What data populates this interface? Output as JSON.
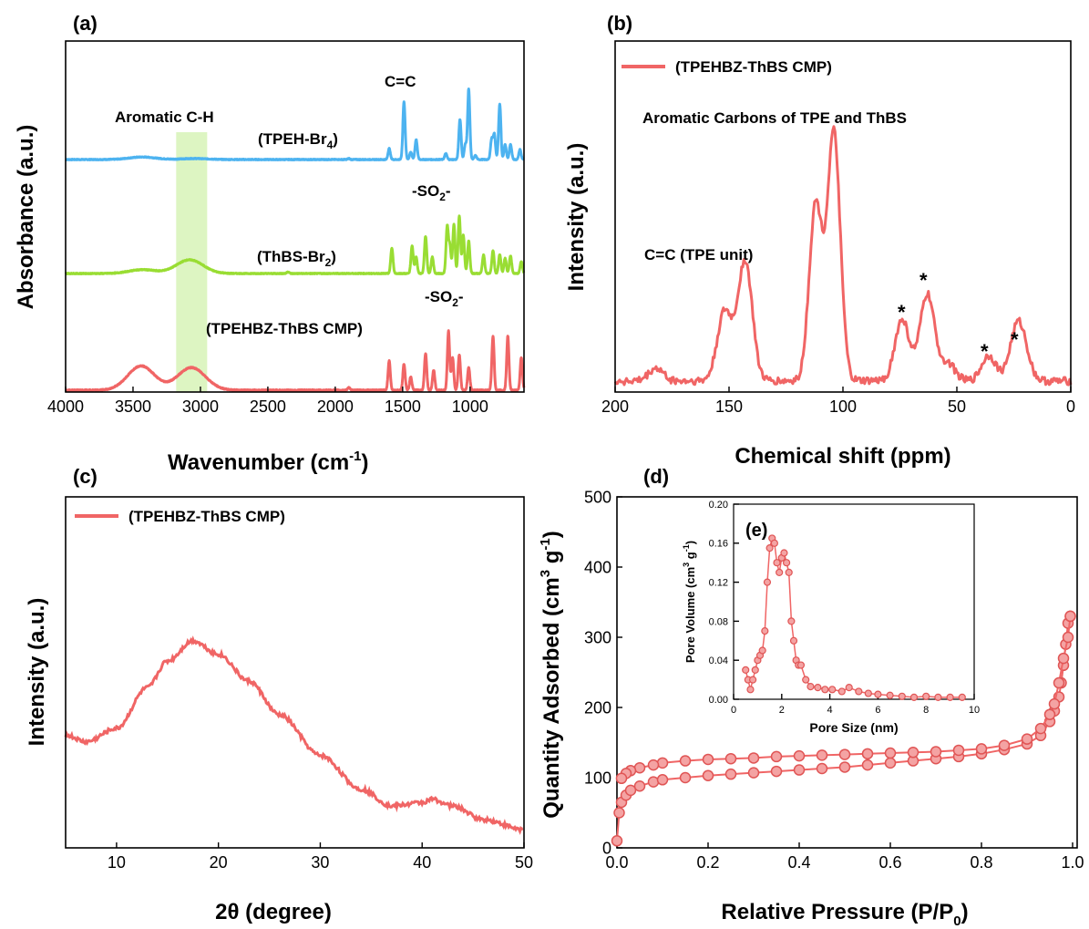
{
  "colors": {
    "red": "#F06565",
    "blue": "#4DB3F0",
    "green": "#99DD33",
    "band": "#DDF5C2"
  },
  "chart_data": [
    {
      "panel": "(a)",
      "type": "line",
      "xlabel": "Wavenumber (cm",
      "xlabel_sup": "-1",
      "xlabel_end": ")",
      "ylabel": "Absorbance (a.u.)",
      "xlim": [
        4000,
        600
      ],
      "xticks": [
        "4000",
        "3500",
        "3000",
        "2500",
        "2000",
        "1500",
        "1000"
      ],
      "y_ticks_shown": false,
      "highlight_band": {
        "label": "Aromatic C-H",
        "x_range": [
          3180,
          2950
        ]
      },
      "annotations": [
        {
          "text": "C=C"
        },
        {
          "text": "-SO",
          "sub": "2",
          "end": "-"
        },
        {
          "text": "-SO",
          "sub": "2",
          "end": "-"
        }
      ],
      "series": [
        {
          "name": "(TPEH-Br",
          "sub": "4",
          "end": ")",
          "color": "#4DB3F0",
          "offset": 2,
          "peaks": [
            [
              3430,
              0.5
            ],
            [
              3040,
              0.2
            ],
            [
              1900,
              0.2
            ],
            [
              1600,
              2.2
            ],
            [
              1490,
              11.5
            ],
            [
              1440,
              1.5
            ],
            [
              1400,
              4
            ],
            [
              1180,
              1.2
            ],
            [
              1075,
              8
            ],
            [
              1035,
              3
            ],
            [
              1010,
              14
            ],
            [
              960,
              0.8
            ],
            [
              840,
              4
            ],
            [
              820,
              5
            ],
            [
              780,
              11
            ],
            [
              740,
              3
            ],
            [
              700,
              3
            ],
            [
              630,
              2
            ]
          ]
        },
        {
          "name": "(ThBS-Br",
          "sub": "2",
          "end": ")",
          "color": "#99DD33",
          "offset": 1,
          "peaks": [
            [
              3430,
              0.7
            ],
            [
              3080,
              2.5
            ],
            [
              2350,
              0.3
            ],
            [
              1580,
              4.6
            ],
            [
              1430,
              5
            ],
            [
              1400,
              3
            ],
            [
              1330,
              6.8
            ],
            [
              1280,
              3
            ],
            [
              1170,
              8.5
            ],
            [
              1150,
              5
            ],
            [
              1120,
              9
            ],
            [
              1080,
              10.5
            ],
            [
              1050,
              7
            ],
            [
              1010,
              6
            ],
            [
              900,
              3.4
            ],
            [
              830,
              4.2
            ],
            [
              780,
              3.5
            ],
            [
              740,
              2.8
            ],
            [
              700,
              3.2
            ],
            [
              620,
              2.2
            ]
          ]
        },
        {
          "name": "(TPEHBZ-ThBS CMP)",
          "color": "#F06565",
          "offset": 0,
          "peaks": [
            [
              3440,
              3.7
            ],
            [
              3100,
              1.6
            ],
            [
              3040,
              2
            ],
            [
              1900,
              0.4
            ],
            [
              1600,
              4.5
            ],
            [
              1490,
              4
            ],
            [
              1440,
              2
            ],
            [
              1330,
              5.6
            ],
            [
              1270,
              3
            ],
            [
              1160,
              9
            ],
            [
              1130,
              5
            ],
            [
              1080,
              5.4
            ],
            [
              1010,
              3.5
            ],
            [
              830,
              8.2
            ],
            [
              720,
              8.3
            ],
            [
              620,
              5
            ]
          ]
        }
      ]
    },
    {
      "panel": "(b)",
      "type": "line",
      "xlabel": "Chemical shift (ppm)",
      "ylabel": "Intensity (a.u.)",
      "xlim": [
        200,
        0
      ],
      "xticks": [
        "200",
        "150",
        "100",
        "50",
        "0"
      ],
      "y_ticks_shown": false,
      "legend": "(TPEHBZ-ThBS CMP)",
      "annotations": [
        "Aromatic Carbons of TPE and ThBS",
        "C=C (TPE unit)",
        "*",
        "*",
        "*",
        "*"
      ],
      "peaks_ppm": [
        [
          182,
          0.05
        ],
        [
          152,
          0.27
        ],
        [
          143,
          0.47
        ],
        [
          112,
          0.69
        ],
        [
          104,
          0.97
        ],
        [
          74,
          0.24
        ],
        [
          63,
          0.34
        ],
        [
          54,
          0.07
        ],
        [
          36,
          0.1
        ],
        [
          24,
          0.16
        ],
        [
          21,
          0.1
        ]
      ],
      "series": [
        {
          "name": "(TPEHBZ-ThBS CMP)",
          "color": "#F06565"
        }
      ]
    },
    {
      "panel": "(c)",
      "type": "line",
      "xlabel": "2θ (degree)",
      "ylabel": "Intensity (a.u.)",
      "xlim": [
        5,
        50
      ],
      "xticks": [
        "10",
        "20",
        "30",
        "40",
        "50"
      ],
      "y_ticks_shown": false,
      "legend": "(TPEHBZ-ThBS CMP)",
      "x": [
        5,
        7,
        10,
        13,
        15,
        17.5,
        20,
        23,
        26,
        30,
        34,
        37,
        40,
        41,
        43,
        46,
        50
      ],
      "y": [
        0.58,
        0.56,
        0.6,
        0.72,
        0.8,
        0.86,
        0.82,
        0.74,
        0.64,
        0.52,
        0.42,
        0.37,
        0.38,
        0.39,
        0.37,
        0.33,
        0.3
      ],
      "series": [
        {
          "name": "(TPEHBZ-ThBS CMP)",
          "color": "#F06565"
        }
      ]
    },
    {
      "panel": "(d)",
      "type": "scatter",
      "xlabel": "Relative Pressure (P/P",
      "xlabel_sub": "0",
      "xlabel_end": ")",
      "ylabel": "Quantity Adsorbed (cm",
      "ylabel_sup": "3",
      "ylabel_mid": " g",
      "ylabel_sup2": "-1",
      "ylabel_end": ")",
      "xlim": [
        0,
        1
      ],
      "ylim": [
        0,
        500
      ],
      "xticks": [
        "0.0",
        "0.2",
        "0.4",
        "0.6",
        "0.8",
        "1.0"
      ],
      "yticks": [
        "0",
        "100",
        "200",
        "300",
        "400",
        "500"
      ],
      "adsorption": {
        "x": [
          0,
          0.005,
          0.01,
          0.02,
          0.03,
          0.05,
          0.08,
          0.1,
          0.15,
          0.2,
          0.25,
          0.3,
          0.35,
          0.4,
          0.45,
          0.5,
          0.55,
          0.6,
          0.65,
          0.7,
          0.75,
          0.8,
          0.85,
          0.9,
          0.93,
          0.95,
          0.96,
          0.97,
          0.975,
          0.98,
          0.985,
          0.99,
          0.995
        ],
        "y": [
          10,
          50,
          65,
          75,
          82,
          88,
          94,
          97,
          100,
          103,
          105,
          107,
          109,
          111,
          113,
          115,
          118,
          121,
          124,
          127,
          130,
          134,
          140,
          148,
          160,
          180,
          195,
          215,
          235,
          260,
          290,
          320,
          330
        ]
      },
      "desorption": {
        "x": [
          0.995,
          0.99,
          0.98,
          0.97,
          0.96,
          0.95,
          0.93,
          0.9,
          0.85,
          0.8,
          0.75,
          0.7,
          0.65,
          0.6,
          0.55,
          0.5,
          0.45,
          0.4,
          0.35,
          0.3,
          0.25,
          0.2,
          0.15,
          0.1,
          0.08,
          0.05,
          0.03,
          0.02,
          0.01
        ],
        "y": [
          330,
          300,
          270,
          235,
          205,
          190,
          170,
          155,
          146,
          141,
          139,
          137,
          136,
          135,
          134,
          133,
          132,
          131,
          130,
          128,
          127,
          126,
          124,
          121,
          118,
          114,
          110,
          106,
          99
        ]
      },
      "series": [
        {
          "name": "",
          "color": "#F06565"
        }
      ]
    },
    {
      "panel": "(e)",
      "type": "scatter",
      "xlabel": "Pore Size (nm)",
      "ylabel": "Pore Volume (cm",
      "ylabel_sup": "3",
      "ylabel_mid": " g",
      "ylabel_sup2": "-1",
      "ylabel_end": ")",
      "xlim": [
        0,
        10
      ],
      "ylim": [
        0,
        0.2
      ],
      "xticks": [
        "0",
        "2",
        "4",
        "6",
        "8",
        "10"
      ],
      "yticks": [
        "0.00",
        "0.04",
        "0.08",
        "0.12",
        "0.16",
        "0.20"
      ],
      "x": [
        0.5,
        0.6,
        0.7,
        0.8,
        0.9,
        1.0,
        1.1,
        1.2,
        1.3,
        1.4,
        1.5,
        1.6,
        1.7,
        1.8,
        1.9,
        2.0,
        2.1,
        2.2,
        2.3,
        2.4,
        2.5,
        2.6,
        2.7,
        2.8,
        3.0,
        3.2,
        3.5,
        3.8,
        4.1,
        4.5,
        4.8,
        5.2,
        5.6,
        6.0,
        6.5,
        7.0,
        7.5,
        8.0,
        8.5,
        9.0,
        9.5
      ],
      "y": [
        0.03,
        0.02,
        0.01,
        0.02,
        0.03,
        0.04,
        0.045,
        0.05,
        0.07,
        0.12,
        0.155,
        0.165,
        0.16,
        0.14,
        0.13,
        0.145,
        0.15,
        0.14,
        0.13,
        0.08,
        0.06,
        0.04,
        0.035,
        0.035,
        0.02,
        0.013,
        0.012,
        0.01,
        0.01,
        0.008,
        0.012,
        0.008,
        0.006,
        0.005,
        0.004,
        0.003,
        0.002,
        0.003,
        0.002,
        0.002,
        0.002
      ],
      "series": [
        {
          "name": "",
          "color": "#F06565"
        }
      ]
    }
  ]
}
